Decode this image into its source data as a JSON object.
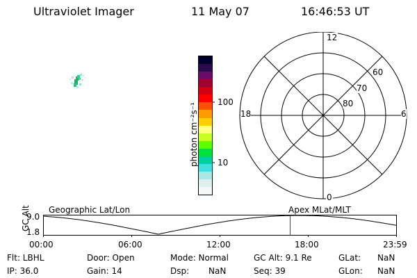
{
  "header": {
    "title": "Ultraviolet Imager",
    "date": "11 May 07",
    "time": "16:46:53 UT"
  },
  "colorbar": {
    "label": "photon cm⁻²s⁻¹",
    "ticks": [
      "100",
      "10"
    ],
    "colors": [
      "#000030",
      "#2a0a4a",
      "#6a0a6a",
      "#a00030",
      "#d00010",
      "#ff0000",
      "#ff5000",
      "#ff9a00",
      "#ffd000",
      "#ffff80",
      "#c8ff20",
      "#60ff00",
      "#00e040",
      "#00d0a0",
      "#40e0e0",
      "#a8e8e8",
      "#e0f0f0",
      "#f4f8f8"
    ]
  },
  "polar": {
    "mlt_labels": {
      "top": "12",
      "left": "18",
      "right": "6",
      "bottom": "0"
    },
    "lat_labels": [
      "60",
      "70",
      "80"
    ]
  },
  "altitude_plot": {
    "y_label": "GC Alt",
    "y_ticks": [
      "9.0",
      "1.8"
    ],
    "left_label": "Geographic Lat/Lon",
    "right_label": "Apex MLat/MLT",
    "x_ticks": [
      "00:00",
      "06:00",
      "12:00",
      "18:00",
      "23:59"
    ],
    "current_time_hours": 16.78
  },
  "info": {
    "flt": "Flt: LBHL",
    "door": "Door: Open",
    "mode": "Mode: Normal",
    "gc_alt": "GC Alt: 9.1 Re",
    "glat_label": "GLat:",
    "glat_value": "NaN",
    "ip": "IP: 36.0",
    "gain": "Gain: 14",
    "dsp_label": "Dsp:",
    "dsp_value": "NaN",
    "seq": "Seq: 39",
    "glon_label": "GLon:",
    "glon_value": "NaN"
  },
  "colors": {
    "time_marker": "#e00000",
    "aurora_green": "#10c060",
    "aurora_cyan": "#80e8e0"
  }
}
